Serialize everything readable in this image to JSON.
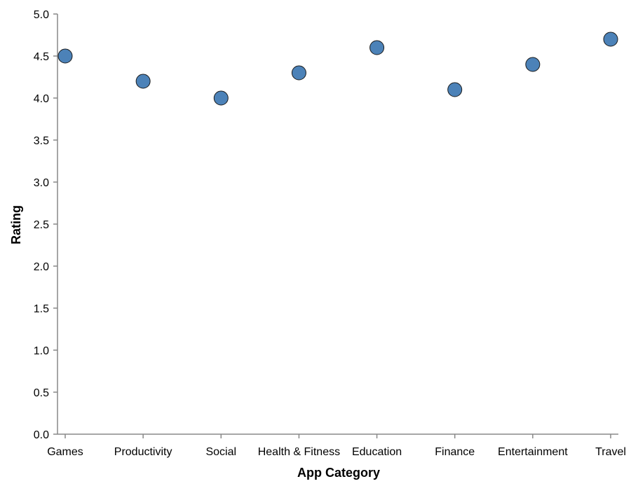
{
  "chart_data": {
    "type": "scatter",
    "categories": [
      "Games",
      "Productivity",
      "Social",
      "Health & Fitness",
      "Education",
      "Finance",
      "Entertainment",
      "Travel"
    ],
    "series": [
      {
        "values": [
          4.5,
          4.2,
          4.0,
          4.3,
          4.6,
          4.1,
          4.4,
          4.7
        ]
      }
    ],
    "xlabel": "App Category",
    "ylabel": "Rating",
    "ylim": [
      0,
      5
    ],
    "yticks": [
      "0.0",
      "0.5",
      "1.0",
      "1.5",
      "2.0",
      "2.5",
      "3.0",
      "3.5",
      "4.0",
      "4.5",
      "5.0"
    ],
    "grid": false,
    "point_color": "#4c82b8"
  }
}
